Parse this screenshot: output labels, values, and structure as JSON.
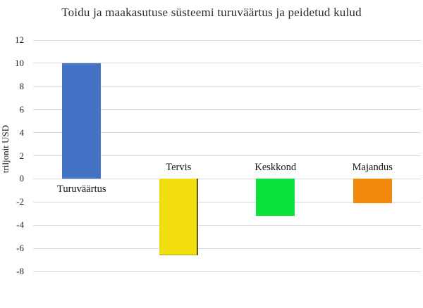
{
  "page": {
    "background": "#FFFFFF"
  },
  "chart_data": {
    "type": "bar",
    "title": "Toidu ja maakasutuse süsteemi turuväärtus ja peidetud kulud",
    "ylabel": "triljonit USD",
    "xlabel": "",
    "categories": [
      "Turuväärtus",
      "Tervis",
      "Keskkond",
      "Majandus"
    ],
    "values": [
      10,
      -6.6,
      -3.2,
      -2.1
    ],
    "bar_colors": [
      "#4472C4",
      "#F2DD0E",
      "#0BE33A",
      "#F18A0F"
    ],
    "bar_edge_colors": [
      null,
      "#60591B",
      null,
      null
    ],
    "ylim": [
      -8,
      12
    ],
    "yticks": [
      12,
      10,
      8,
      6,
      4,
      2,
      0,
      -2,
      -4,
      -6,
      -8
    ],
    "grid": "horizontal gridlines on",
    "gridline_color": "#D9D9D9",
    "legend": "none",
    "label_position": "category labels sit at the zero axis: below it for the positive bar, above it for negative bars"
  }
}
